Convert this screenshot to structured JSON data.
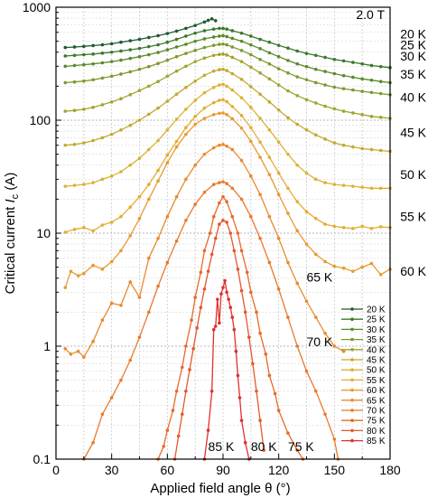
{
  "chart_data": {
    "type": "line",
    "ylabel": "Critical current Ic (A)",
    "ylabel_parts": {
      "pre": "Critical current ",
      "italic": "I",
      "sub": "c",
      "post": " (A)"
    },
    "xlabel": "Applied field angle θ (°)",
    "xlim": [
      0,
      180
    ],
    "ylim": [
      0.1,
      1000
    ],
    "yscale": "log",
    "xticks": [
      0,
      30,
      60,
      90,
      120,
      150,
      180
    ],
    "yticks": [
      0.1,
      1,
      10,
      100,
      1000
    ],
    "ytick_labels": [
      "0.1",
      "1",
      "10",
      "100",
      "1000"
    ],
    "grid": true,
    "legend_position": "lower-right",
    "field_label": "2.0 T",
    "right_labels": [
      {
        "text": "20 K",
        "y": 580
      },
      {
        "text": "25 K",
        "y": 465
      },
      {
        "text": "30 K",
        "y": 370
      },
      {
        "text": "35 K",
        "y": 255
      },
      {
        "text": "40 K",
        "y": 160
      },
      {
        "text": "45 K",
        "y": 78
      },
      {
        "text": "50 K",
        "y": 33
      },
      {
        "text": "55 K",
        "y": 14
      },
      {
        "text": "60 K",
        "y": 4.6
      }
    ],
    "inline_labels": [
      {
        "text": "65 K",
        "x": 142,
        "y": 4.1
      },
      {
        "text": "70 K",
        "x": 142,
        "y": 1.1
      },
      {
        "text": "85 K",
        "x": 89,
        "y": 0.13
      },
      {
        "text": "80 K",
        "x": 112,
        "y": 0.13
      },
      {
        "text": "75 K",
        "x": 132,
        "y": 0.13
      }
    ],
    "series": [
      {
        "name": "20 K",
        "color": "#1f5a32",
        "x": [
          5,
          10,
          15,
          20,
          25,
          30,
          35,
          40,
          45,
          50,
          55,
          60,
          65,
          70,
          75,
          80,
          82,
          84,
          86
        ],
        "y": [
          440,
          445,
          450,
          458,
          465,
          475,
          490,
          505,
          520,
          540,
          560,
          585,
          615,
          650,
          690,
          740,
          765,
          790,
          760
        ]
      },
      {
        "name": "25 K",
        "color": "#3a7a2a",
        "x": [
          5,
          10,
          15,
          20,
          25,
          30,
          35,
          40,
          45,
          50,
          55,
          60,
          65,
          70,
          75,
          80,
          85,
          88,
          90,
          92,
          95,
          100,
          105,
          110,
          115,
          120,
          125,
          130,
          135,
          140,
          145,
          150,
          155,
          160,
          165,
          170,
          175,
          180
        ],
        "y": [
          370,
          375,
          380,
          385,
          392,
          400,
          410,
          420,
          432,
          448,
          465,
          490,
          520,
          555,
          590,
          620,
          640,
          650,
          650,
          640,
          620,
          590,
          555,
          520,
          490,
          460,
          435,
          410,
          390,
          375,
          360,
          345,
          335,
          325,
          315,
          305,
          298,
          292
        ]
      },
      {
        "name": "30 K",
        "color": "#5b8a2a",
        "x": [
          5,
          10,
          15,
          20,
          25,
          30,
          35,
          40,
          45,
          50,
          55,
          60,
          65,
          70,
          75,
          80,
          85,
          88,
          90,
          92,
          95,
          100,
          105,
          110,
          115,
          120,
          125,
          130,
          135,
          140,
          145,
          150,
          155,
          160,
          165,
          170,
          175,
          180
        ],
        "y": [
          300,
          305,
          310,
          315,
          322,
          330,
          340,
          352,
          365,
          380,
          398,
          420,
          445,
          470,
          500,
          525,
          545,
          555,
          560,
          550,
          530,
          500,
          465,
          430,
          395,
          365,
          338,
          315,
          298,
          282,
          270,
          258,
          248,
          240,
          232,
          226,
          220,
          215
        ]
      },
      {
        "name": "35 K",
        "color": "#7d9a2e",
        "x": [
          5,
          10,
          15,
          20,
          25,
          30,
          35,
          40,
          45,
          50,
          55,
          60,
          65,
          70,
          75,
          80,
          85,
          88,
          90,
          92,
          95,
          100,
          105,
          110,
          115,
          120,
          125,
          130,
          135,
          140,
          145,
          150,
          155,
          160,
          165,
          170,
          175,
          180
        ],
        "y": [
          215,
          218,
          222,
          228,
          236,
          245,
          256,
          268,
          282,
          298,
          318,
          340,
          365,
          390,
          415,
          440,
          460,
          470,
          472,
          465,
          445,
          415,
          380,
          345,
          315,
          285,
          262,
          242,
          228,
          215,
          205,
          196,
          190,
          185,
          180,
          176,
          172,
          168
        ]
      },
      {
        "name": "40 K",
        "color": "#a0a52f",
        "x": [
          5,
          10,
          15,
          20,
          25,
          30,
          35,
          40,
          45,
          50,
          55,
          60,
          65,
          70,
          75,
          80,
          85,
          88,
          90,
          92,
          95,
          100,
          105,
          110,
          115,
          120,
          125,
          130,
          135,
          140,
          145,
          150,
          155,
          160,
          165,
          170,
          175,
          180
        ],
        "y": [
          120,
          122,
          125,
          130,
          137,
          145,
          155,
          168,
          183,
          200,
          220,
          245,
          272,
          300,
          330,
          355,
          375,
          382,
          385,
          378,
          360,
          330,
          295,
          262,
          232,
          205,
          182,
          165,
          152,
          142,
          133,
          126,
          120,
          116,
          112,
          108,
          106,
          104
        ]
      },
      {
        "name": "45 K",
        "color": "#c3a933",
        "x": [
          5,
          10,
          15,
          20,
          25,
          30,
          35,
          40,
          45,
          50,
          55,
          60,
          65,
          70,
          75,
          80,
          85,
          88,
          90,
          92,
          95,
          100,
          105,
          110,
          115,
          120,
          125,
          130,
          135,
          140,
          145,
          150,
          155,
          160,
          165,
          170,
          175,
          180
        ],
        "y": [
          60,
          61,
          63,
          66,
          70,
          75,
          82,
          90,
          100,
          113,
          128,
          147,
          170,
          195,
          222,
          250,
          272,
          280,
          282,
          275,
          258,
          230,
          198,
          170,
          145,
          123,
          105,
          92,
          82,
          74,
          68,
          63,
          60,
          58,
          56,
          55,
          54,
          53
        ]
      },
      {
        "name": "50 K",
        "color": "#dcb236",
        "x": [
          5,
          10,
          15,
          20,
          25,
          30,
          35,
          40,
          45,
          50,
          55,
          60,
          65,
          70,
          75,
          80,
          85,
          88,
          90,
          92,
          95,
          100,
          105,
          110,
          115,
          120,
          125,
          130,
          135,
          140,
          145,
          150,
          155,
          160,
          165,
          170,
          175,
          180
        ],
        "y": [
          26,
          26.5,
          27,
          28,
          30,
          32,
          35,
          40,
          46,
          55,
          66,
          82,
          102,
          125,
          150,
          175,
          195,
          205,
          208,
          200,
          185,
          158,
          130,
          104,
          82,
          64,
          50,
          40,
          34,
          30,
          28,
          27,
          26.5,
          26,
          25.5,
          25,
          25,
          25
        ]
      },
      {
        "name": "55 K",
        "color": "#e4ad33",
        "x": [
          5,
          10,
          15,
          20,
          25,
          30,
          35,
          40,
          45,
          50,
          55,
          60,
          65,
          70,
          75,
          80,
          85,
          88,
          90,
          92,
          95,
          100,
          105,
          110,
          115,
          120,
          125,
          130,
          135,
          140,
          145,
          150,
          155,
          160,
          165,
          170,
          175,
          180
        ],
        "y": [
          10.2,
          10.8,
          11.2,
          10.5,
          11.8,
          12.5,
          14,
          17,
          21,
          27,
          36,
          49,
          65,
          86,
          108,
          128,
          143,
          150,
          152,
          146,
          132,
          110,
          86,
          64,
          47,
          34,
          25,
          19,
          15.5,
          13.5,
          12,
          11.5,
          11.2,
          11,
          11.5,
          11,
          11.4,
          11.2
        ]
      },
      {
        "name": "60 K",
        "color": "#e89a30",
        "x": [
          5,
          8,
          12,
          15,
          20,
          25,
          30,
          35,
          40,
          45,
          50,
          55,
          60,
          65,
          70,
          75,
          80,
          85,
          88,
          90,
          92,
          95,
          100,
          105,
          110,
          115,
          120,
          125,
          130,
          135,
          140,
          145,
          150,
          155,
          160,
          165,
          170,
          175,
          180
        ],
        "y": [
          3.3,
          4.6,
          4.2,
          4.4,
          5.2,
          4.8,
          5.6,
          7,
          9.5,
          13.5,
          20,
          29,
          42,
          58,
          75,
          92,
          104,
          112,
          115,
          116,
          112,
          103,
          85,
          65,
          47,
          33,
          22,
          15,
          10.5,
          8,
          6.5,
          5.6,
          5.1,
          4.9,
          4.6,
          5,
          5.4,
          4.3,
          4.8
        ]
      },
      {
        "name": "65 K",
        "color": "#e98a2f",
        "x": [
          5,
          8,
          12,
          15,
          20,
          25,
          30,
          35,
          40,
          45,
          50,
          55,
          60,
          65,
          70,
          75,
          80,
          85,
          88,
          90,
          92,
          95,
          100,
          105,
          110,
          115,
          120,
          125,
          130,
          135,
          140,
          145,
          150,
          155
        ],
        "y": [
          0.95,
          0.85,
          0.9,
          0.8,
          1.1,
          1.7,
          2.4,
          2.3,
          3.7,
          2.7,
          6,
          9,
          14,
          21,
          30,
          40,
          50,
          57,
          60,
          61,
          59,
          55,
          44,
          32,
          22,
          14,
          9,
          5.5,
          3.6,
          2.5,
          1.8,
          1.3,
          1,
          0.9
        ]
      },
      {
        "name": "70 K",
        "color": "#e97a2c",
        "x": [
          15,
          20,
          25,
          30,
          35,
          40,
          45,
          50,
          55,
          60,
          65,
          70,
          75,
          80,
          85,
          88,
          90,
          92,
          95,
          100,
          105,
          110,
          115,
          120,
          125,
          130,
          135,
          140,
          145,
          150,
          152
        ],
        "y": [
          0.1,
          0.14,
          0.25,
          0.35,
          0.5,
          0.75,
          1.2,
          2,
          3.4,
          5.5,
          8.5,
          13,
          18,
          23,
          27,
          28,
          28.5,
          27.5,
          25,
          20,
          14,
          9,
          5.5,
          3.2,
          1.8,
          1,
          0.6,
          0.4,
          0.25,
          0.15,
          0.1
        ]
      },
      {
        "name": "75 K",
        "color": "#e66a2a",
        "x": [
          55,
          58,
          60,
          63,
          65,
          68,
          70,
          73,
          75,
          78,
          80,
          83,
          85,
          88,
          90,
          92,
          95,
          98,
          100,
          103,
          105,
          108,
          110,
          113,
          115,
          118,
          120,
          125,
          130,
          133
        ],
        "y": [
          0.1,
          0.13,
          0.18,
          0.27,
          0.4,
          0.65,
          1,
          1.7,
          2.7,
          4.5,
          7,
          10,
          14,
          18.5,
          21,
          19,
          14,
          10,
          7,
          4.5,
          3,
          2,
          1.3,
          0.85,
          0.55,
          0.38,
          0.27,
          0.17,
          0.12,
          0.1
        ]
      },
      {
        "name": "80 K",
        "color": "#e4582c",
        "x": [
          64,
          66,
          68,
          70,
          72,
          74,
          76,
          78,
          80,
          82,
          84,
          86,
          88,
          90,
          92,
          94,
          96,
          98,
          100,
          102,
          104,
          106,
          108,
          110,
          112
        ],
        "y": [
          0.1,
          0.16,
          0.25,
          0.4,
          0.62,
          0.95,
          1.45,
          2.2,
          3.2,
          4.6,
          6.5,
          9,
          12,
          13,
          12.5,
          10,
          7,
          4.8,
          3.1,
          2,
          1.2,
          0.7,
          0.4,
          0.22,
          0.12
        ]
      },
      {
        "name": "85 K",
        "color": "#e0302e",
        "x": [
          80,
          82,
          84,
          85,
          86,
          87,
          88,
          89,
          90,
          91,
          92,
          93,
          94,
          95,
          96,
          97,
          98,
          99,
          100,
          102,
          104
        ],
        "y": [
          0.1,
          0.18,
          0.4,
          1.4,
          1.5,
          2.6,
          1.6,
          2.9,
          3.3,
          3.8,
          3.0,
          2.6,
          2.2,
          1.8,
          1.4,
          0.9,
          0.55,
          0.35,
          0.22,
          0.14,
          0.1
        ]
      }
    ]
  }
}
